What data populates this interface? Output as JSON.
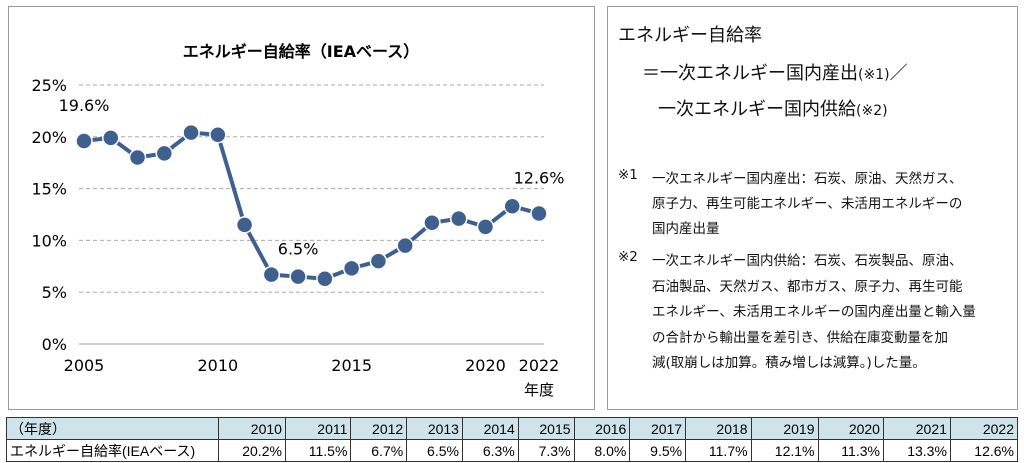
{
  "chart_data": {
    "type": "line",
    "title": "エネルギー自給率（IEAベース）",
    "xlabel": "年度",
    "ylabel": "",
    "x": [
      2005,
      2006,
      2007,
      2008,
      2009,
      2010,
      2011,
      2012,
      2013,
      2014,
      2015,
      2016,
      2017,
      2018,
      2019,
      2020,
      2021,
      2022
    ],
    "values": [
      19.6,
      19.9,
      18.0,
      18.4,
      20.4,
      20.2,
      11.5,
      6.7,
      6.5,
      6.3,
      7.3,
      8.0,
      9.5,
      11.7,
      12.1,
      11.3,
      13.3,
      12.6
    ],
    "ylim": [
      0,
      25
    ],
    "yticks": [
      "0%",
      "5%",
      "10%",
      "15%",
      "20%",
      "25%"
    ],
    "xticks": [
      "2005",
      "2010",
      "2015",
      "2020",
      "2022"
    ],
    "annotations": [
      {
        "x": 2005,
        "text": "19.6%"
      },
      {
        "x": 2013,
        "text": "6.5%"
      },
      {
        "x": 2022,
        "text": "12.6%"
      }
    ],
    "grid": true,
    "color": "#3f5f8f"
  },
  "notes": {
    "formula_line1": "エネルギー自給率",
    "formula_line2": "＝一次エネルギー国内産出",
    "formula_ref1": "(※1)",
    "formula_slash": "／",
    "formula_line3": "一次エネルギー国内供給",
    "formula_ref2": "(※2)",
    "note1_mark": "※1",
    "note1_lines": [
      "一次エネルギー国内産出：石炭、原油、天然ガス、",
      "原子力、再生可能エネルギー、未活用エネルギーの",
      "国内産出量"
    ],
    "note2_mark": "※2",
    "note2_lines": [
      "一次エネルギー国内供給：石炭、石炭製品、原油、",
      "石油製品、天然ガス、都市ガス、原子力、再生可能",
      "エネルギー、未活用エネルギーの国内産出量と輸入量",
      "の合計から輸出量を差引き、供給在庫変動量を加",
      "減(取崩しは加算。積み増しは減算。)した量。"
    ]
  },
  "table": {
    "header_label": "（年度）",
    "years": [
      "2010",
      "2011",
      "2012",
      "2013",
      "2014",
      "2015",
      "2016",
      "2017",
      "2018",
      "2019",
      "2020",
      "2021",
      "2022"
    ],
    "row_label": "エネルギー自給率(IEAベース)",
    "row_values": [
      "20.2%",
      "11.5%",
      "6.7%",
      "6.5%",
      "6.3%",
      "7.3%",
      "8.0%",
      "9.5%",
      "11.7%",
      "12.1%",
      "11.3%",
      "13.3%",
      "12.6%"
    ]
  }
}
